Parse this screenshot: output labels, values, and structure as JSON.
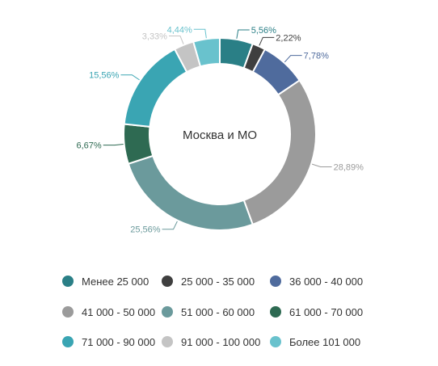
{
  "chart_data": {
    "type": "pie",
    "subtype": "donut",
    "center_label": "Москва и МО",
    "categories": [
      "Менее 25 000",
      "25 000 - 35 000",
      "36 000 - 40 000",
      "41 000 - 50 000",
      "51 000 - 60 000",
      "61 000 - 70 000",
      "71 000 - 90 000",
      "91 000 - 100 000",
      "Более 101 000"
    ],
    "values": [
      5.56,
      2.22,
      7.78,
      28.89,
      25.56,
      6.67,
      15.56,
      3.33,
      4.44
    ],
    "data_labels": [
      "5,56%",
      "2,22%",
      "7,78%",
      "28,89%",
      "25,56%",
      "6,67%",
      "15,56%",
      "3,33%",
      "4,44%"
    ],
    "colors": [
      "#2a7f86",
      "#3f3f3f",
      "#4f6b9d",
      "#9b9b9b",
      "#6b9a9c",
      "#2e6a52",
      "#3aa5b3",
      "#c4c4c4",
      "#69c2cd"
    ],
    "legend_position": "bottom"
  }
}
